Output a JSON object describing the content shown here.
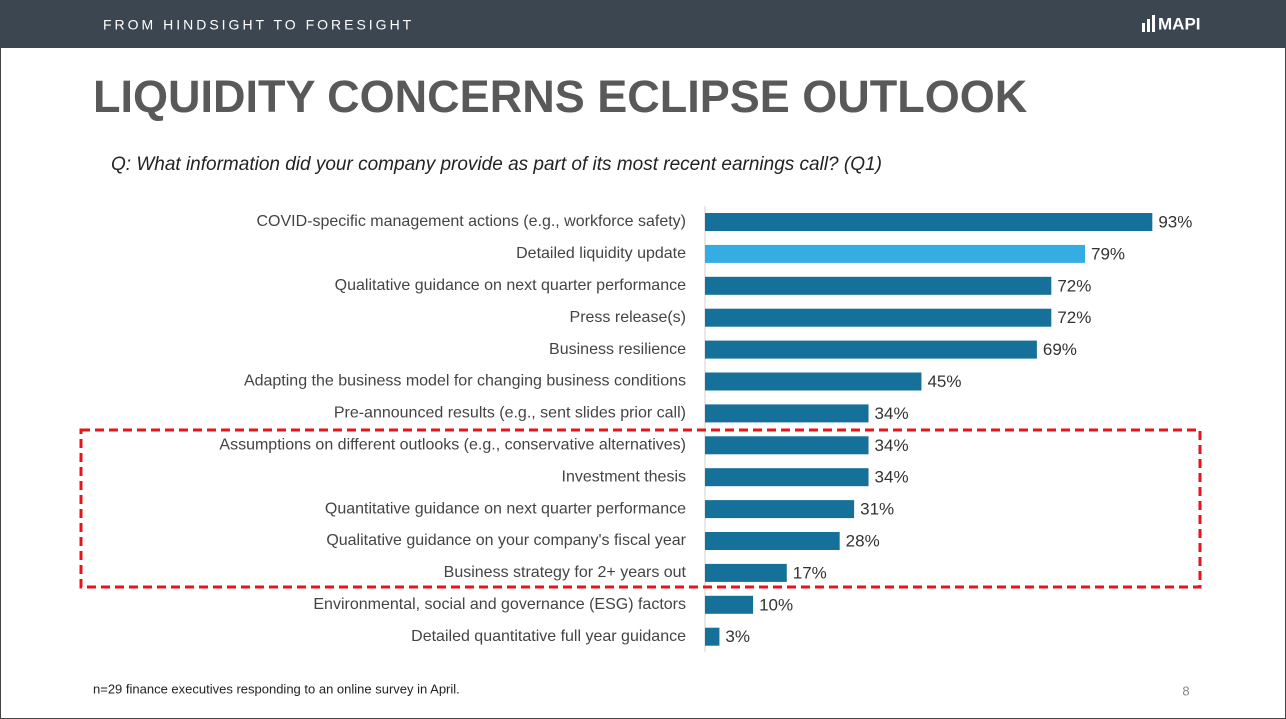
{
  "header": "FROM HINDSIGHT TO FORESIGHT",
  "logo": "MAPI",
  "footnote": "n=29 finance executives responding to an online survey in April.",
  "page_number": 8,
  "chart_data": {
    "type": "bar",
    "orientation": "horizontal",
    "title": "LIQUIDITY CONCERNS ECLIPSE OUTLOOK",
    "subtitle": "Q: What information did your company provide as part of its most recent earnings call? (Q1)",
    "categories": [
      "COVID-specific management actions (e.g., workforce safety)",
      "Detailed liquidity update",
      "Qualitative guidance on next quarter performance",
      "Press release(s)",
      "Business resilience",
      "Adapting the business model for changing business conditions",
      "Pre-announced results (e.g., sent slides prior call)",
      "Assumptions on different outlooks (e.g., conservative alternatives)",
      "Investment thesis",
      "Quantitative guidance on next quarter performance",
      "Qualitative guidance on your company's fiscal year",
      "Business strategy for 2+ years out",
      "Environmental, social and governance (ESG) factors",
      "Detailed quantitative full year guidance"
    ],
    "values": [
      93,
      79,
      72,
      72,
      69,
      45,
      34,
      34,
      34,
      31,
      28,
      17,
      10,
      3
    ],
    "value_labels": [
      "93%",
      "79%",
      "72%",
      "72%",
      "69%",
      "45%",
      "34%",
      "34%",
      "34%",
      "31%",
      "28%",
      "17%",
      "10%",
      "3%"
    ],
    "colors": [
      "#15709a",
      "#35ade3",
      "#15709a",
      "#15709a",
      "#15709a",
      "#15709a",
      "#15709a",
      "#15709a",
      "#15709a",
      "#15709a",
      "#15709a",
      "#15709a",
      "#15709a",
      "#15709a"
    ],
    "xlim": [
      0,
      100
    ]
  }
}
